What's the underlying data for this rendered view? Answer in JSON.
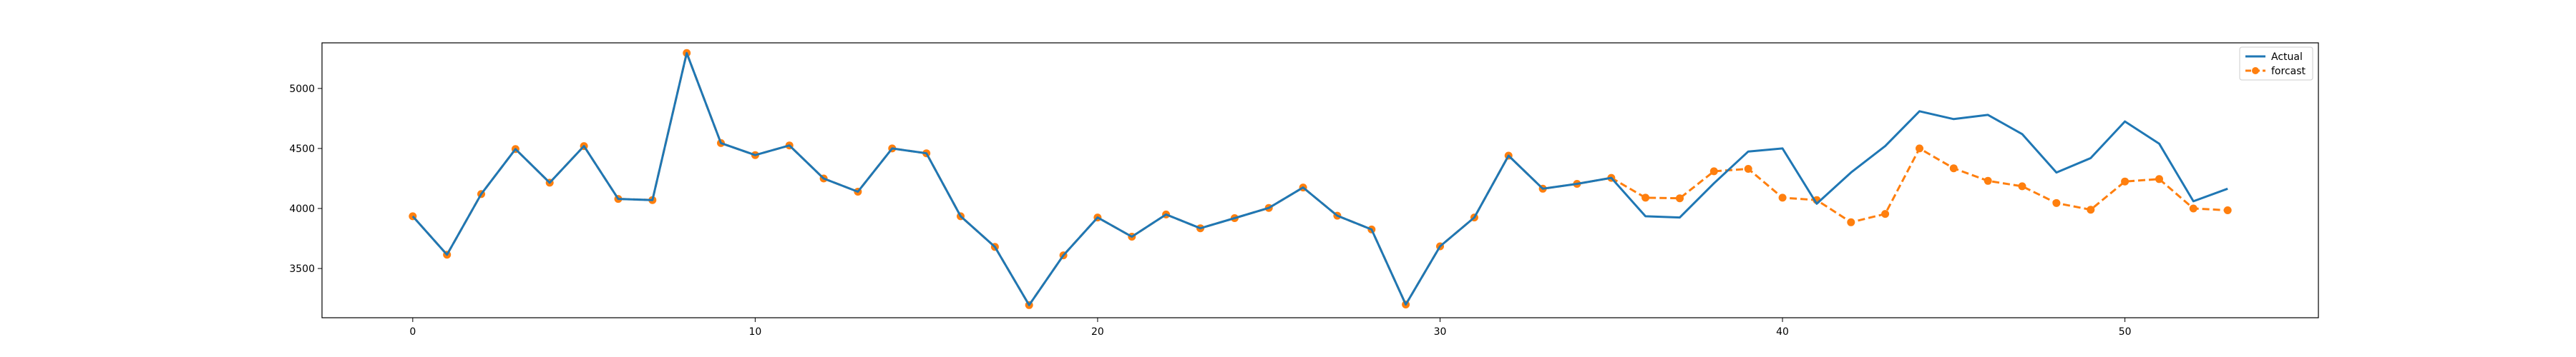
{
  "chart_data": {
    "type": "line",
    "title": "",
    "xlabel": "",
    "ylabel": "",
    "xlim": [
      -2.65,
      55.65
    ],
    "ylim": [
      3090,
      5380
    ],
    "x_ticks": [
      0,
      10,
      20,
      30,
      40,
      50
    ],
    "y_ticks": [
      3500,
      4000,
      4500,
      5000
    ],
    "grid": false,
    "legend_position": "top-right",
    "series": [
      {
        "name": "Actual",
        "color": "#1f77b4",
        "style": "solid",
        "marker": "none",
        "x": [
          0,
          1,
          2,
          3,
          4,
          5,
          6,
          7,
          8,
          9,
          10,
          11,
          12,
          13,
          14,
          15,
          16,
          17,
          18,
          19,
          20,
          21,
          22,
          23,
          24,
          25,
          26,
          27,
          28,
          29,
          30,
          31,
          32,
          33,
          34,
          35,
          36,
          37,
          38,
          39,
          40,
          41,
          42,
          43,
          44,
          45,
          46,
          47,
          48,
          49,
          50,
          51,
          52,
          53
        ],
        "values": [
          3935,
          3615,
          4120,
          4495,
          4215,
          4520,
          4080,
          4070,
          5295,
          4545,
          4445,
          4525,
          4250,
          4140,
          4500,
          4460,
          3935,
          3680,
          3195,
          3610,
          3925,
          3765,
          3950,
          3835,
          3920,
          4005,
          4175,
          3940,
          3825,
          3200,
          3685,
          3925,
          4440,
          4165,
          4205,
          4255,
          3935,
          3925,
          4210,
          4475,
          4500,
          4040,
          4300,
          4520,
          4810,
          4745,
          4780,
          4620,
          4300,
          4420,
          4725,
          4540,
          4060,
          4165
        ]
      },
      {
        "name": "forcast",
        "color": "#ff7f0e",
        "style": "dashed",
        "marker": "circle",
        "x": [
          0,
          1,
          2,
          3,
          4,
          5,
          6,
          7,
          8,
          9,
          10,
          11,
          12,
          13,
          14,
          15,
          16,
          17,
          18,
          19,
          20,
          21,
          22,
          23,
          24,
          25,
          26,
          27,
          28,
          29,
          30,
          31,
          32,
          33,
          34,
          35,
          36,
          37,
          38,
          39,
          40,
          41,
          42,
          43,
          44,
          45,
          46,
          47,
          48,
          49,
          50,
          51,
          52,
          53
        ],
        "values": [
          3935,
          3615,
          4120,
          4495,
          4215,
          4520,
          4080,
          4070,
          5295,
          4545,
          4445,
          4525,
          4250,
          4140,
          4500,
          4460,
          3935,
          3680,
          3195,
          3610,
          3925,
          3765,
          3950,
          3835,
          3920,
          4005,
          4175,
          3940,
          3825,
          3200,
          3685,
          3925,
          4440,
          4165,
          4205,
          4255,
          4090,
          4085,
          4310,
          4330,
          4090,
          4070,
          3885,
          3955,
          4500,
          4335,
          4230,
          4185,
          4045,
          3990,
          4225,
          4245,
          4000,
          3985
        ]
      }
    ]
  }
}
